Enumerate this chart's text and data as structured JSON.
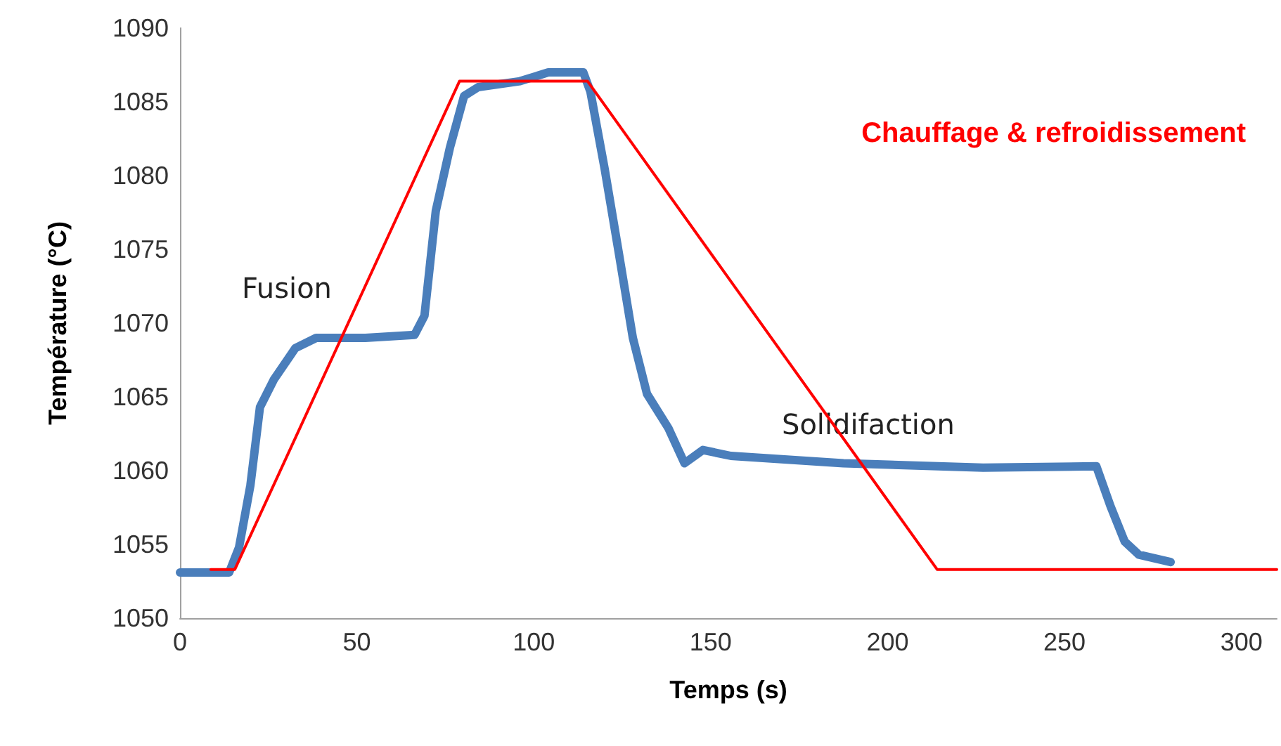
{
  "chart_data": {
    "type": "line",
    "xlabel": "Temps (s)",
    "ylabel": "Température (°C)",
    "xlim": [
      0,
      310
    ],
    "xticks": [
      0,
      50,
      100,
      150,
      200,
      250,
      300
    ],
    "ylim": [
      1050,
      1090
    ],
    "yticks": [
      1050,
      1055,
      1060,
      1065,
      1070,
      1075,
      1080,
      1085,
      1090
    ],
    "grid": false,
    "legend": false,
    "marker": "none",
    "line_style": "solid",
    "annotations": [
      "Fusion",
      "Solidifaction"
    ],
    "series": [
      {
        "color": "#4a7ebb",
        "x": [
          0,
          13.9,
          16.7,
          19.9,
          22.6,
          26.6,
          32.6,
          38.5,
          52.4,
          66.3,
          69.1,
          72.3,
          76.3,
          80.3,
          84.3,
          96.1,
          104.1,
          114,
          116,
          120,
          124,
          128,
          132,
          138,
          142.6,
          147.8,
          155.7,
          187.5,
          227,
          259,
          263,
          267,
          271,
          280
        ],
        "values": [
          1053.1,
          1053.1,
          1054.8,
          1059,
          1064.3,
          1066.2,
          1068.3,
          1069,
          1069,
          1069.2,
          1070.5,
          1077.6,
          1081.9,
          1085.4,
          1086,
          1086.4,
          1087,
          1087,
          1085.7,
          1080.5,
          1074.8,
          1069,
          1065.2,
          1062.9,
          1060.5,
          1061.4,
          1061,
          1060.5,
          1060.2,
          1060.3,
          1057.6,
          1055.2,
          1054.3,
          1053.8
        ]
      },
      {
        "name": "Chauffage & refroidissement",
        "color": "#ff0000",
        "x": [
          8.7,
          15.5,
          79,
          115.2,
          214,
          310
        ],
        "values": [
          1053.3,
          1053.3,
          1086.4,
          1086.4,
          1053.3,
          1053.3
        ]
      }
    ]
  }
}
